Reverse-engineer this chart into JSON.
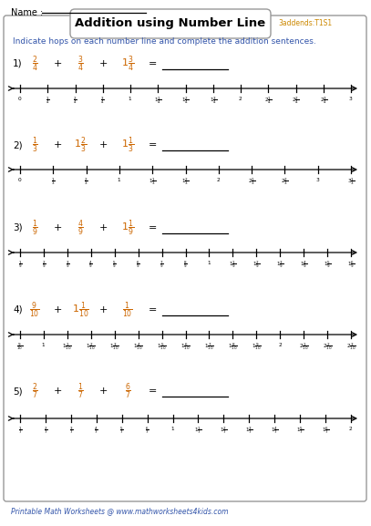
{
  "title": "Addition using Number Line",
  "subtitle": "3addends:T1S1",
  "name_label": "Name :",
  "instruction": "Indicate hops on each number line and complete the addition sentences.",
  "footer": "Printable Math Worksheets @ www.mathworksheets4kids.com",
  "problems": [
    {
      "number": "1)",
      "term1": "\\frac{2}{4}",
      "term2": "\\frac{3}{4}",
      "term3": "1\\frac{3}{4}",
      "ticks": [
        0,
        0.25,
        0.5,
        0.75,
        1.0,
        1.25,
        1.5,
        1.75,
        2.0,
        2.25,
        2.5,
        2.75,
        3.0
      ],
      "tick_labels": [
        "0",
        "\\frac{1}{4}",
        "\\frac{2}{4}",
        "\\frac{3}{4}",
        "1",
        "1\\frac{1}{4}",
        "1\\frac{2}{4}",
        "1\\frac{3}{4}",
        "2",
        "2\\frac{1}{4}",
        "2\\frac{2}{4}",
        "2\\frac{3}{4}",
        "3"
      ]
    },
    {
      "number": "2)",
      "term1": "\\frac{1}{3}",
      "term2": "1\\frac{2}{3}",
      "term3": "1\\frac{1}{3}",
      "ticks": [
        0,
        0.3333,
        0.6667,
        1.0,
        1.3333,
        1.6667,
        2.0,
        2.3333,
        2.6667,
        3.0,
        3.3333
      ],
      "tick_labels": [
        "0",
        "\\frac{1}{3}",
        "\\frac{2}{3}",
        "1",
        "1\\frac{1}{3}",
        "1\\frac{2}{3}",
        "2",
        "2\\frac{1}{3}",
        "2\\frac{2}{3}",
        "3",
        "3\\frac{1}{3}"
      ]
    },
    {
      "number": "3)",
      "term1": "\\frac{1}{9}",
      "term2": "\\frac{4}{9}",
      "term3": "1\\frac{1}{9}",
      "ticks": [
        0.1111,
        0.2222,
        0.3333,
        0.4444,
        0.5556,
        0.6667,
        0.7778,
        0.8889,
        1.0,
        1.1111,
        1.2222,
        1.3333,
        1.4444,
        1.5556,
        1.6667
      ],
      "tick_labels": [
        "\\frac{1}{9}",
        "\\frac{2}{9}",
        "\\frac{3}{9}",
        "\\frac{4}{9}",
        "\\frac{5}{9}",
        "\\frac{6}{9}",
        "\\frac{7}{9}",
        "\\frac{8}{9}",
        "1",
        "1\\frac{1}{9}",
        "1\\frac{2}{9}",
        "1\\frac{3}{9}",
        "1\\frac{4}{9}",
        "1\\frac{5}{9}",
        "1\\frac{6}{9}"
      ]
    },
    {
      "number": "4)",
      "term1": "\\frac{9}{10}",
      "term2": "1\\frac{1}{10}",
      "term3": "\\frac{1}{10}",
      "ticks": [
        0.9,
        1.0,
        1.1,
        1.2,
        1.3,
        1.4,
        1.5,
        1.6,
        1.7,
        1.8,
        1.9,
        2.0,
        2.1,
        2.2,
        2.3
      ],
      "tick_labels": [
        "\\frac{9}{10}",
        "1",
        "1\\frac{1}{10}",
        "1\\frac{2}{10}",
        "1\\frac{3}{10}",
        "1\\frac{4}{10}",
        "1\\frac{5}{10}",
        "1\\frac{6}{10}",
        "1\\frac{7}{10}",
        "1\\frac{8}{10}",
        "1\\frac{9}{10}",
        "2",
        "2\\frac{1}{10}",
        "2\\frac{2}{10}",
        "2\\frac{3}{10}"
      ]
    },
    {
      "number": "5)",
      "term1": "\\frac{2}{7}",
      "term2": "\\frac{1}{7}",
      "term3": "\\frac{6}{7}",
      "ticks": [
        0.1429,
        0.2857,
        0.4286,
        0.5714,
        0.7143,
        0.8571,
        1.0,
        1.1429,
        1.2857,
        1.4286,
        1.5714,
        1.7143,
        1.8571,
        2.0
      ],
      "tick_labels": [
        "\\frac{1}{7}",
        "\\frac{2}{7}",
        "\\frac{3}{7}",
        "\\frac{4}{7}",
        "\\frac{5}{7}",
        "\\frac{6}{7}",
        "1",
        "1\\frac{1}{7}",
        "1\\frac{2}{7}",
        "1\\frac{3}{7}",
        "1\\frac{4}{7}",
        "1\\frac{5}{7}",
        "1\\frac{6}{7}",
        "2"
      ]
    }
  ],
  "bg_color": "#ffffff",
  "text_color": "#000000",
  "orange_color": "#cc6600",
  "blue_color": "#3355aa",
  "border_color": "#999999",
  "footer_color": "#3355aa"
}
